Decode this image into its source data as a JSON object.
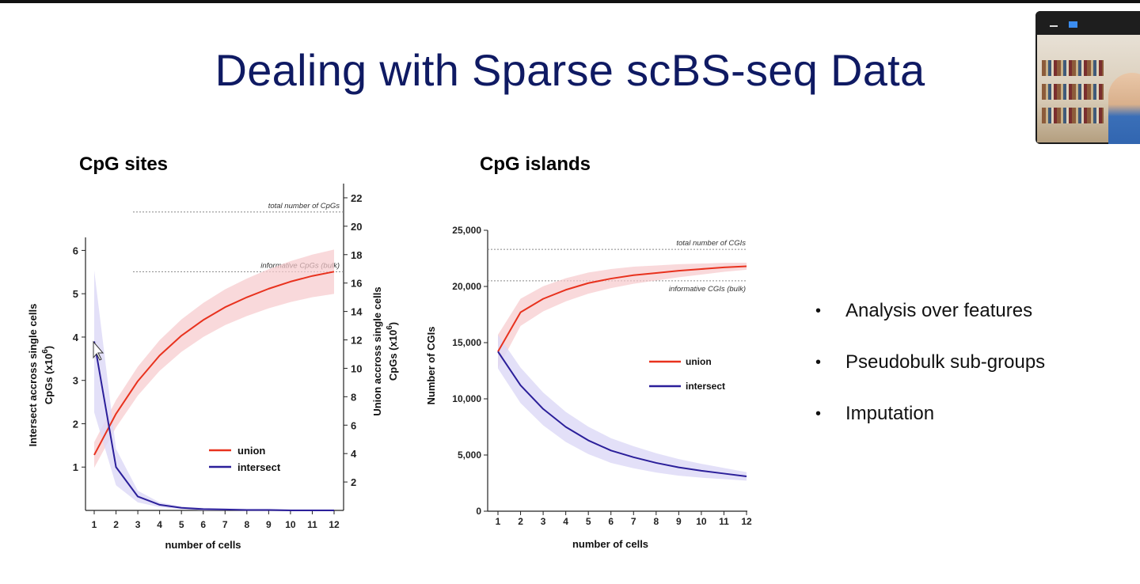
{
  "slide": {
    "title": "Dealing with Sparse scBS-seq Data"
  },
  "bullets": [
    "Analysis over features",
    "Pseudobulk sub-groups",
    "Imputation"
  ],
  "video_thumbnail": {
    "controls": [
      "minimize-icon",
      "maximize-icon"
    ]
  },
  "colors": {
    "title": "#0f1a63",
    "union": "#e8321e",
    "intersect": "#2b1f9a",
    "union_band": "#f6c9cc",
    "intersect_band": "#dcd8f6"
  },
  "chart_data": [
    {
      "type": "line",
      "title": "CpG sites",
      "xlabel": "number of  cells",
      "ylabel_left": [
        "Intersect accross single cells",
        "CpGs (x10",
        "6",
        ")"
      ],
      "ylabel_right": [
        "Union accross single cells",
        "CpGs (x10",
        "6",
        ")"
      ],
      "x": [
        1,
        2,
        3,
        4,
        5,
        6,
        7,
        8,
        9,
        10,
        11,
        12
      ],
      "xlim": [
        1,
        12
      ],
      "y_left_lim": [
        0,
        6.3
      ],
      "y_left_ticks": [
        1,
        2,
        3,
        4,
        5,
        6
      ],
      "y_right_lim": [
        0,
        23
      ],
      "y_right_ticks": [
        2,
        4,
        6,
        8,
        10,
        12,
        14,
        16,
        18,
        20,
        22
      ],
      "reference_lines": [
        {
          "label": "total number of CpGs",
          "value": 21,
          "axis": "right"
        },
        {
          "label": "informative CpGs (bulk)",
          "value": 16.8,
          "axis": "right"
        }
      ],
      "series": [
        {
          "name": "union",
          "axis": "right",
          "color": "#e8321e",
          "values": [
            3.9,
            6.8,
            9.1,
            10.9,
            12.3,
            13.4,
            14.3,
            15.0,
            15.6,
            16.1,
            16.5,
            16.8
          ]
        },
        {
          "name": "intersect",
          "axis": "left",
          "color": "#2b1f9a",
          "values": [
            3.9,
            1.0,
            0.32,
            0.13,
            0.06,
            0.03,
            0.02,
            0.01,
            0.01,
            0.0,
            0.0,
            0.0
          ]
        }
      ],
      "legend_position": "center-right"
    },
    {
      "type": "line",
      "title": "CpG islands",
      "xlabel": "number of  cells",
      "ylabel": "Number of CGIs",
      "x": [
        1,
        2,
        3,
        4,
        5,
        6,
        7,
        8,
        9,
        10,
        11,
        12
      ],
      "xlim": [
        1,
        12
      ],
      "ylim": [
        0,
        25000
      ],
      "y_ticks": [
        "0",
        "5,000",
        "10,000",
        "15,000",
        "20,000",
        "25,000"
      ],
      "reference_lines": [
        {
          "label": "total number of CGIs",
          "value": 23300
        },
        {
          "label": "informative CGIs (bulk)",
          "value": 20500
        }
      ],
      "series": [
        {
          "name": "union",
          "color": "#e8321e",
          "values": [
            14200,
            17700,
            18900,
            19700,
            20300,
            20700,
            21000,
            21200,
            21400,
            21550,
            21700,
            21800
          ]
        },
        {
          "name": "intersect",
          "color": "#2b1f9a",
          "values": [
            14200,
            11200,
            9100,
            7500,
            6300,
            5400,
            4800,
            4300,
            3900,
            3600,
            3350,
            3100
          ]
        }
      ],
      "legend_position": "center-right"
    }
  ]
}
